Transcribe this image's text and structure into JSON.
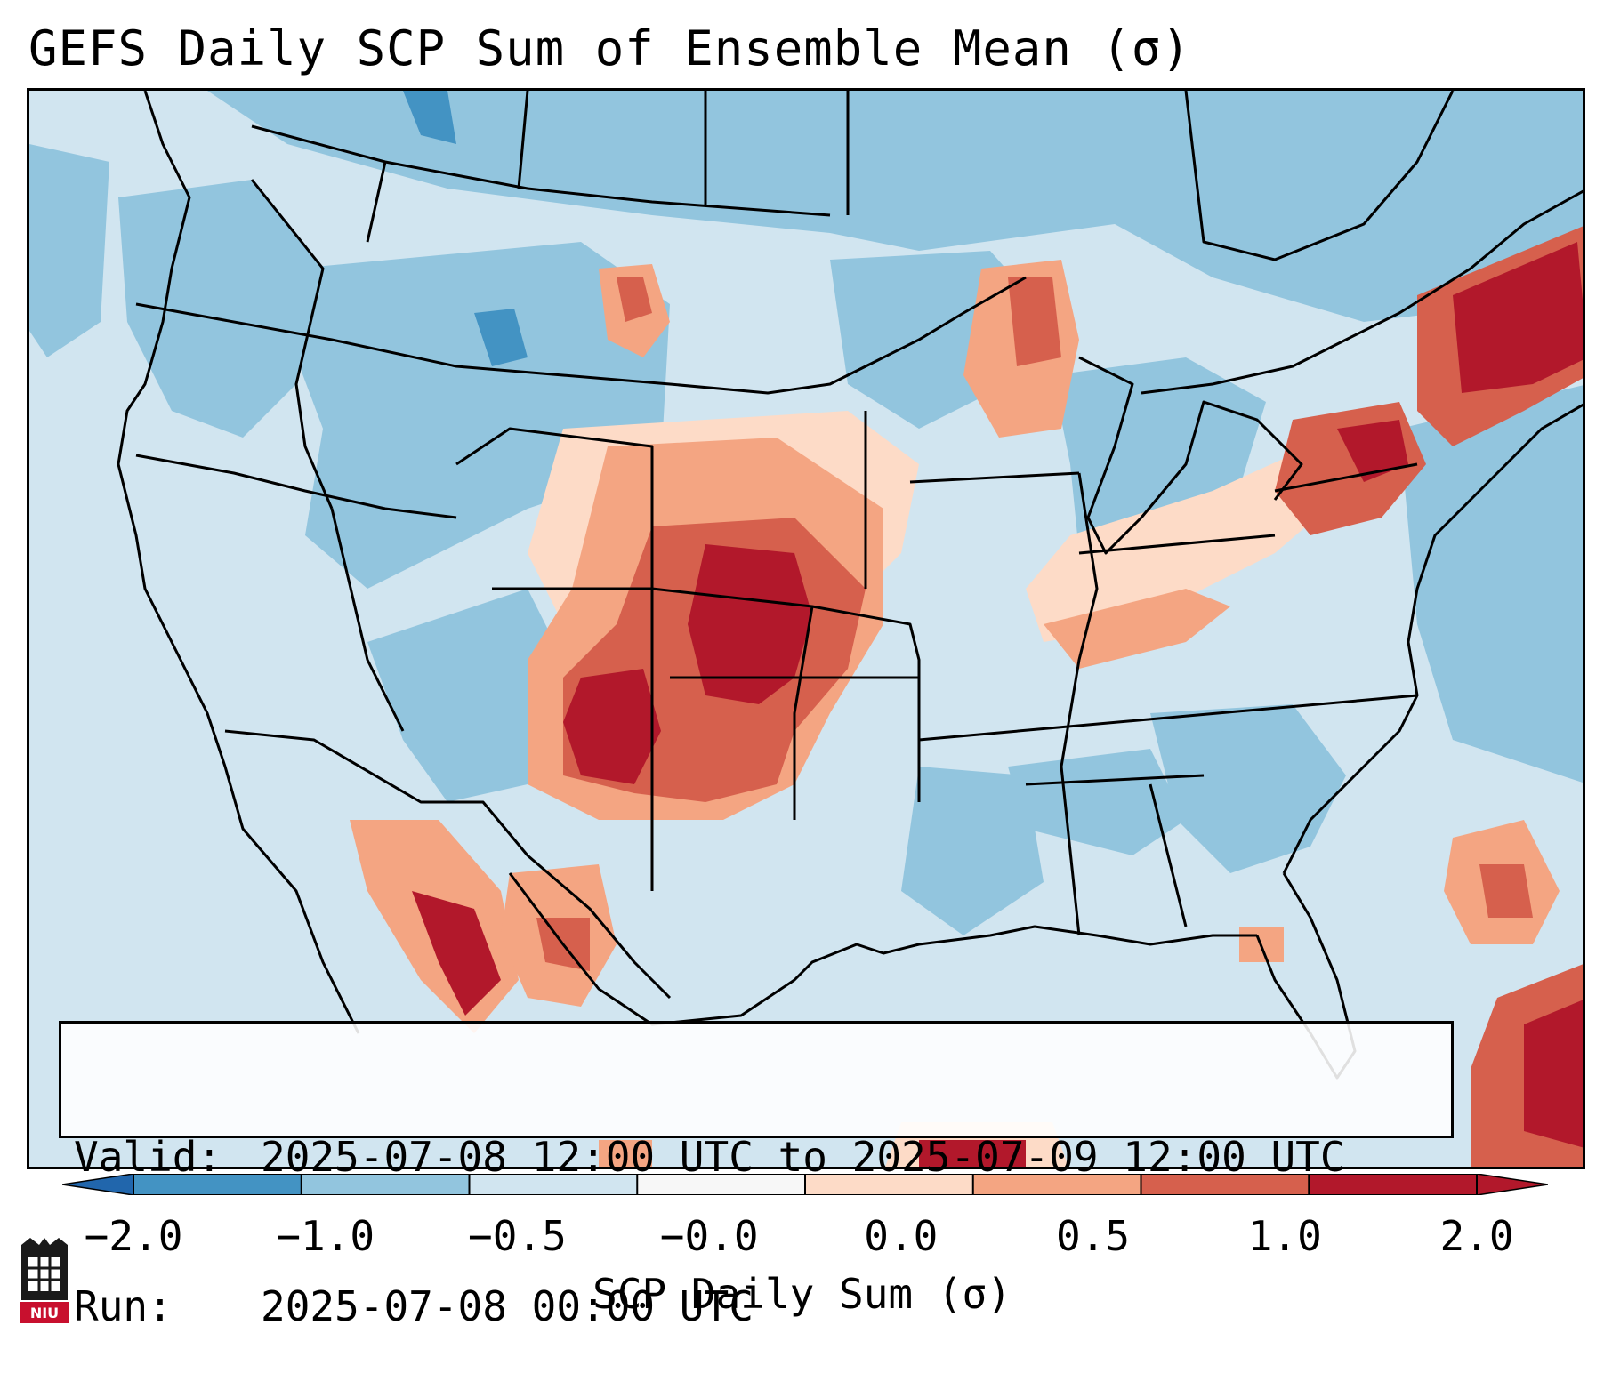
{
  "title": "GEFS Daily SCP Sum of Ensemble Mean (σ)",
  "info": {
    "valid_label": "Valid:",
    "valid_value": "2025-07-08 12:00 UTC to 2025-07-09 12:00 UTC",
    "run_label": "Run:",
    "run_value": "2025-07-08 00:00 UTC"
  },
  "colorbar": {
    "label": "SCP Daily Sum (σ)",
    "ticks": [
      "−2.0",
      "−1.0",
      "−0.5",
      "−0.0",
      "0.0",
      "0.5",
      "1.0",
      "2.0"
    ],
    "colors": [
      "#4393c3",
      "#92c5de",
      "#d1e5f0",
      "#f7f7f7",
      "#fddbc7",
      "#f4a582",
      "#d6604d",
      "#b2182b"
    ],
    "under_color": "#2166ac",
    "over_color": "#b2182b"
  },
  "map": {
    "background_category": "-0.5 to -0.0",
    "regions": [
      {
        "name": "Southern Plains / Oklahoma-Texas Panhandle",
        "category": "1.0 to 2.0"
      },
      {
        "name": "Eastern New Mexico",
        "category": "1.0 to 2.0"
      },
      {
        "name": "New England / New York",
        "category": "1.0 to 2.0"
      },
      {
        "name": "Pennsylvania / New Jersey",
        "category": "1.0 to 2.0"
      },
      {
        "name": "Central Plains / Nebraska-Kansas",
        "category": "0.0 to 1.0"
      },
      {
        "name": "Wisconsin / Upper Michigan",
        "category": "0.0 to 1.0"
      },
      {
        "name": "Ohio Valley / Tennessee",
        "category": "0.0 to 1.0"
      },
      {
        "name": "Northwest Mexico",
        "category": "0.5 to 2.0"
      },
      {
        "name": "Northern Mexico",
        "category": "0.5 to 2.0"
      },
      {
        "name": "Western Atlantic",
        "category": "0.5 to 2.0"
      },
      {
        "name": "Northern Rockies / Montana",
        "category": "-1.0 to -0.5"
      },
      {
        "name": "Southeast Atlantic / Carolinas",
        "category": "-1.0 to -0.5"
      }
    ]
  },
  "logo_text": "NIU"
}
